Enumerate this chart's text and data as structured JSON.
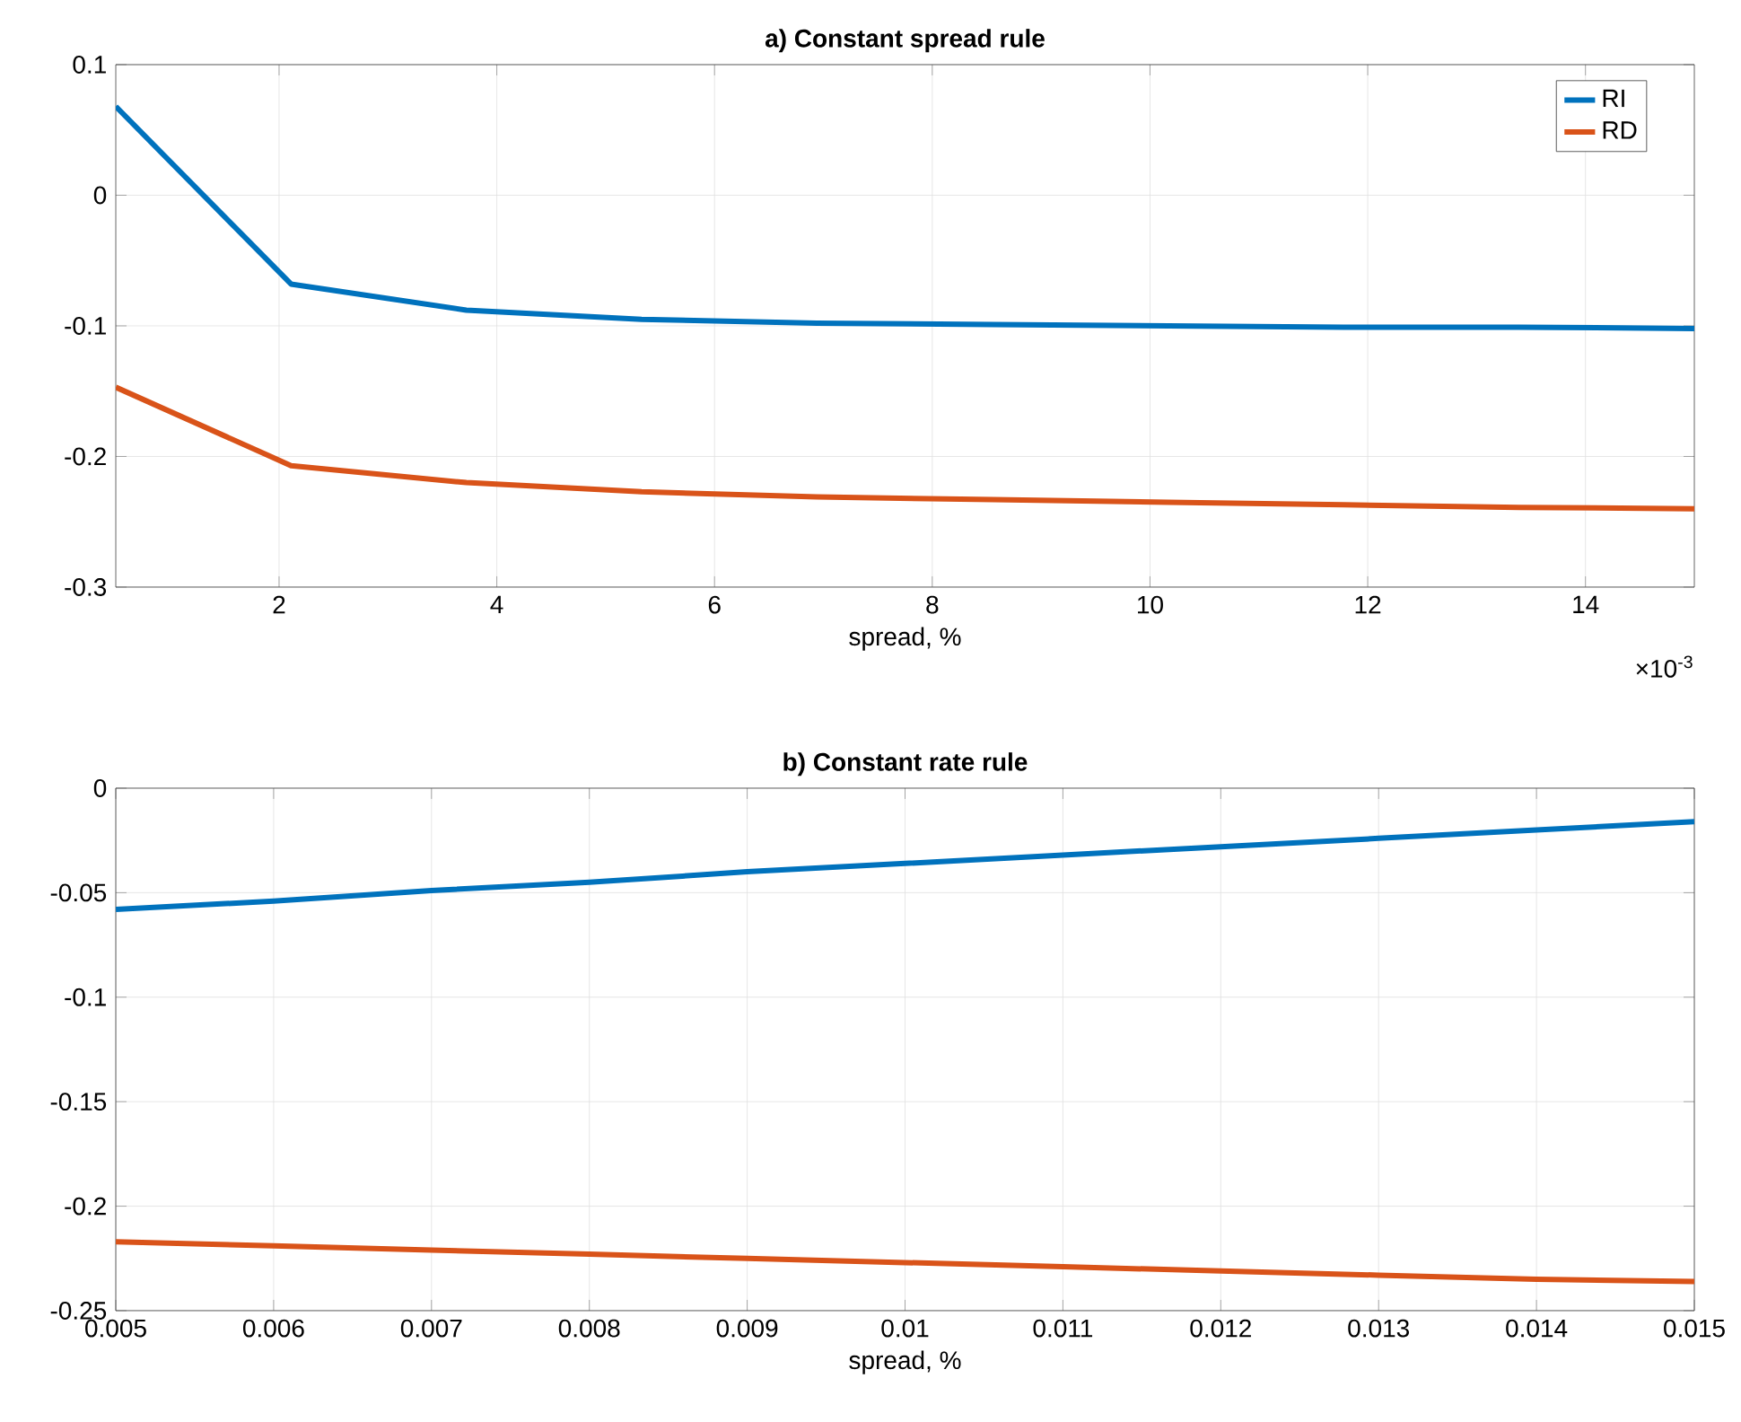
{
  "chart_data": [
    {
      "type": "line",
      "title": "a) Constant spread rule",
      "xlabel": "spread, %",
      "x": [
        0.5,
        2.11,
        3.72,
        5.33,
        6.94,
        8.56,
        10.17,
        11.78,
        13.39,
        15
      ],
      "series": [
        {
          "name": "RI",
          "color": "#0072bd",
          "values": [
            0.068,
            -0.068,
            -0.088,
            -0.095,
            -0.098,
            -0.099,
            -0.1,
            -0.101,
            -0.101,
            -0.102
          ]
        },
        {
          "name": "RD",
          "color": "#d95319",
          "values": [
            -0.147,
            -0.207,
            -0.22,
            -0.227,
            -0.231,
            -0.233,
            -0.235,
            -0.237,
            -0.239,
            -0.24
          ]
        }
      ],
      "xlim": [
        0.5,
        15
      ],
      "xticks": [
        2,
        4,
        6,
        8,
        10,
        12,
        14
      ],
      "ylim": [
        -0.3,
        0.1
      ],
      "yticks": [
        -0.3,
        -0.2,
        -0.1,
        0,
        0.1
      ],
      "annotations": [
        "×10$^{-3}$"
      ],
      "grid": true,
      "legend": "top right",
      "line_style": "solid"
    },
    {
      "type": "line",
      "title": "b) Constant rate rule",
      "xlabel": "spread, %",
      "x": [
        0.005,
        0.006,
        0.007,
        0.008,
        0.009,
        0.01,
        0.011,
        0.012,
        0.013,
        0.014,
        0.015
      ],
      "series": [
        {
          "color": "#0072bd",
          "values": [
            -0.058,
            -0.054,
            -0.049,
            -0.045,
            -0.04,
            -0.036,
            -0.032,
            -0.028,
            -0.024,
            -0.02,
            -0.016
          ]
        },
        {
          "color": "#d95319",
          "values": [
            -0.217,
            -0.219,
            -0.221,
            -0.223,
            -0.225,
            -0.227,
            -0.229,
            -0.231,
            -0.233,
            -0.235,
            -0.236
          ]
        }
      ],
      "xlim": [
        0.005,
        0.015
      ],
      "xticks": [
        0.005,
        0.006,
        0.007,
        0.008,
        0.009,
        0.01,
        0.011,
        0.012,
        0.013,
        0.014,
        0.015
      ],
      "ylim": [
        -0.25,
        0
      ],
      "yticks": [
        -0.25,
        -0.2,
        -0.15,
        -0.1,
        -0.05,
        0
      ],
      "grid": true,
      "line_style": "solid"
    }
  ]
}
